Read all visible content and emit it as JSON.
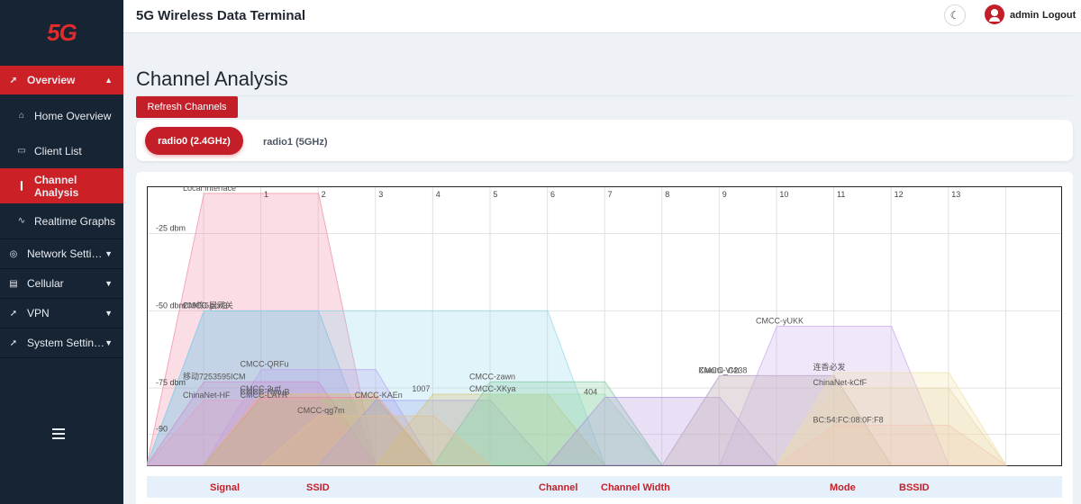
{
  "logo": "5G",
  "header": {
    "title": "5G Wireless Data Terminal",
    "user": "admin",
    "logout": "Logout",
    "theme_icon": "moon-icon"
  },
  "sidebar": {
    "overview": {
      "label": "Overview",
      "icon": "dashboard-icon"
    },
    "sub_items": [
      {
        "label": "Home Overview",
        "icon": "home-icon"
      },
      {
        "label": "Client List",
        "icon": "monitor-icon"
      },
      {
        "label": "Channel Analysis",
        "icon": "bar-chart-icon"
      },
      {
        "label": "Realtime Graphs",
        "icon": "pulse-icon"
      }
    ],
    "groups": [
      {
        "label": "Network Setti…",
        "icon": "globe-icon"
      },
      {
        "label": "Cellular",
        "icon": "modem-icon"
      },
      {
        "label": "VPN",
        "icon": "tool-icon"
      },
      {
        "label": "System Settin…",
        "icon": "tool-icon"
      }
    ]
  },
  "page": {
    "title": "Channel Analysis",
    "refresh_label": "Refresh Channels",
    "tabs": [
      {
        "label": "radio0 (2.4GHz)",
        "active": true
      },
      {
        "label": "radio1 (5GHz)",
        "active": false
      }
    ]
  },
  "table": {
    "headers": [
      "Signal",
      "SSID",
      "Channel",
      "Channel Width",
      "Mode",
      "BSSID"
    ]
  },
  "colors": {
    "accent": "#c41f28",
    "sidebar": "#172433"
  },
  "chart_data": {
    "type": "area",
    "x_ticks": [
      "1",
      "2",
      "3",
      "4",
      "5",
      "6",
      "7",
      "8",
      "9",
      "10",
      "11",
      "12",
      "13"
    ],
    "y_ticks": [
      "-25 dbm",
      "-50 dbm",
      "-75 dbm",
      "-90"
    ],
    "ylim": [
      -100,
      -10
    ],
    "grid": true,
    "series": [
      {
        "name": "Local Interface",
        "channel": 1,
        "signal": -12,
        "width": 20,
        "color": "#f08aa0"
      },
      {
        "name": "209栋6层网关",
        "channel": 1,
        "signal": -50,
        "width": 20,
        "color": "#7fb0e0"
      },
      {
        "name": "CMCC-pcd3",
        "channel": 3,
        "signal": -50,
        "width": 40,
        "color": "#8fd8e8"
      },
      {
        "name": "CMCC-QRFu",
        "channel": 2,
        "signal": -69,
        "width": 20,
        "color": "#b6a6f0"
      },
      {
        "name": "移动7253595ICM",
        "channel": 1,
        "signal": -73,
        "width": 20,
        "color": "#c98bd0"
      },
      {
        "name": "CMCC-3utf",
        "channel": 2,
        "signal": -77,
        "width": 20,
        "color": "#f0b860"
      },
      {
        "name": "CMCC-NmuB",
        "channel": 2,
        "signal": -78,
        "width": 20,
        "color": "#e88a8a"
      },
      {
        "name": "CMCC-LAYR",
        "channel": 2,
        "signal": -79,
        "width": 20,
        "color": "#a0d080"
      },
      {
        "name": "ChinaNet-HF",
        "channel": 1,
        "signal": -79,
        "width": 20,
        "color": "#e0a0c0"
      },
      {
        "name": "CMCC-KAEn",
        "channel": 4,
        "signal": -79,
        "width": 20,
        "color": "#9aa0f0"
      },
      {
        "name": "1007",
        "channel": 5,
        "signal": -77,
        "width": 20,
        "color": "#d8c070"
      },
      {
        "name": "CMCC-zawn",
        "channel": 6,
        "signal": -73,
        "width": 20,
        "color": "#80c8a0"
      },
      {
        "name": "CMCC-XKya",
        "channel": 6,
        "signal": -77,
        "width": 20,
        "color": "#a0e0b0"
      },
      {
        "name": "CMCC-qg7m",
        "channel": 3,
        "signal": -84,
        "width": 20,
        "color": "#e0c090"
      },
      {
        "name": "404",
        "channel": 8,
        "signal": -78,
        "width": 20,
        "color": "#b090e0"
      },
      {
        "name": "CMCC-yUKK",
        "channel": 11,
        "signal": -55,
        "width": 20,
        "color": "#c8a8f0"
      },
      {
        "name": "Xiaomi_C238",
        "channel": 10,
        "signal": -71,
        "width": 20,
        "color": "#f0e080"
      },
      {
        "name": "CMCC-Vl4r",
        "channel": 10,
        "signal": -71,
        "width": 20,
        "color": "#b0a0f0"
      },
      {
        "name": "连香必发",
        "channel": 12,
        "signal": -70,
        "width": 20,
        "color": "#f0e0a0"
      },
      {
        "name": "ChinaNet-kCfF",
        "channel": 12,
        "signal": -75,
        "width": 20,
        "color": "#e8d8b0"
      },
      {
        "name": "BC:54:FC:08:0F:F8",
        "channel": 12,
        "signal": -87,
        "width": 20,
        "color": "#f0c8b0"
      }
    ]
  }
}
